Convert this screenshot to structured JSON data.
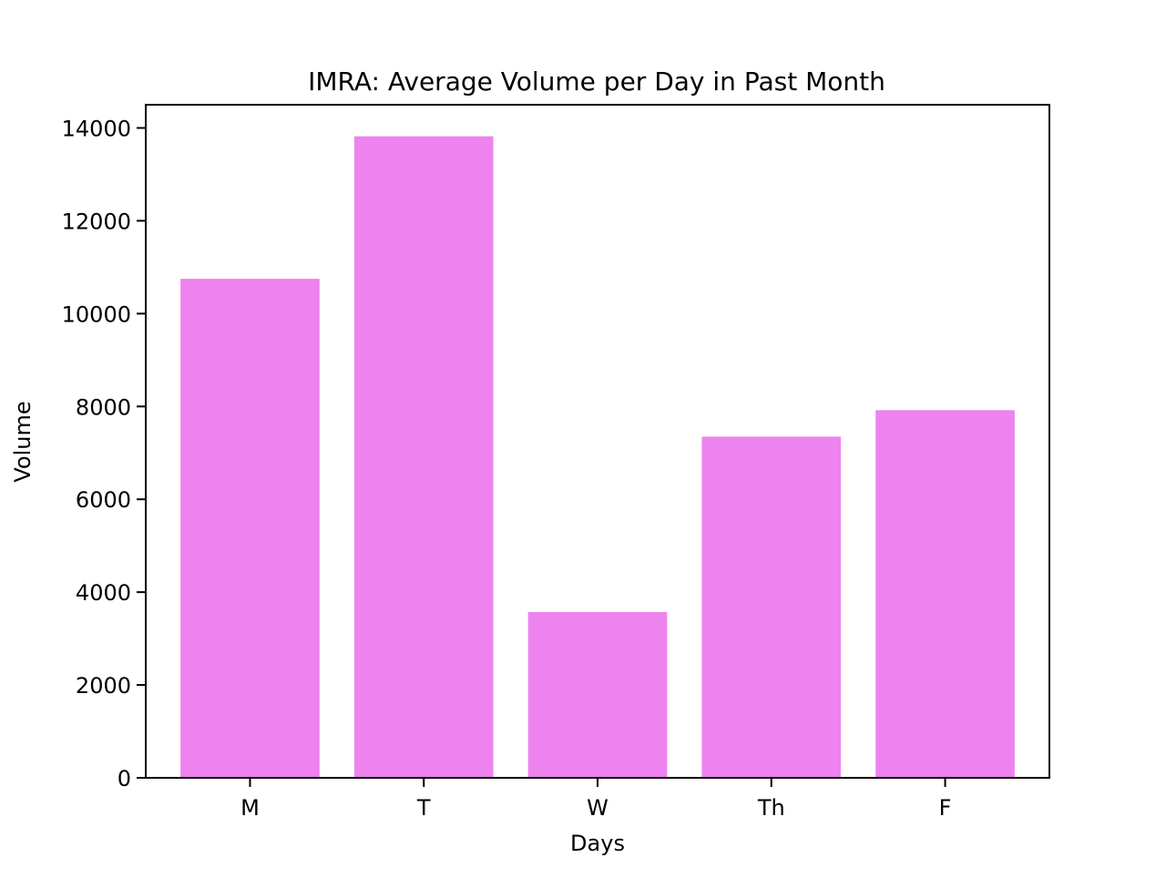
{
  "chart_data": {
    "type": "bar",
    "title": "IMRA: Average Volume per Day in Past Month",
    "xlabel": "Days",
    "ylabel": "Volume",
    "categories": [
      "M",
      "T",
      "W",
      "Th",
      "F"
    ],
    "values": [
      10750,
      13820,
      3570,
      7350,
      7920
    ],
    "ylim": [
      0,
      14500
    ],
    "yticks": [
      0,
      2000,
      4000,
      6000,
      8000,
      10000,
      12000,
      14000
    ],
    "ytick_labels": [
      "0",
      "2000",
      "4000",
      "6000",
      "8000",
      "10000",
      "12000",
      "14000"
    ],
    "bar_color": "#ee82ee",
    "grid": false,
    "legend": "none"
  }
}
